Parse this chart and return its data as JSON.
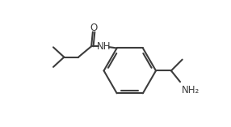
{
  "bg_color": "#ffffff",
  "line_color": "#3d3d3d",
  "text_color": "#3d3d3d",
  "lw": 1.5,
  "font_size": 8.5,
  "xlim": [
    0,
    10
  ],
  "ylim": [
    0,
    7
  ]
}
